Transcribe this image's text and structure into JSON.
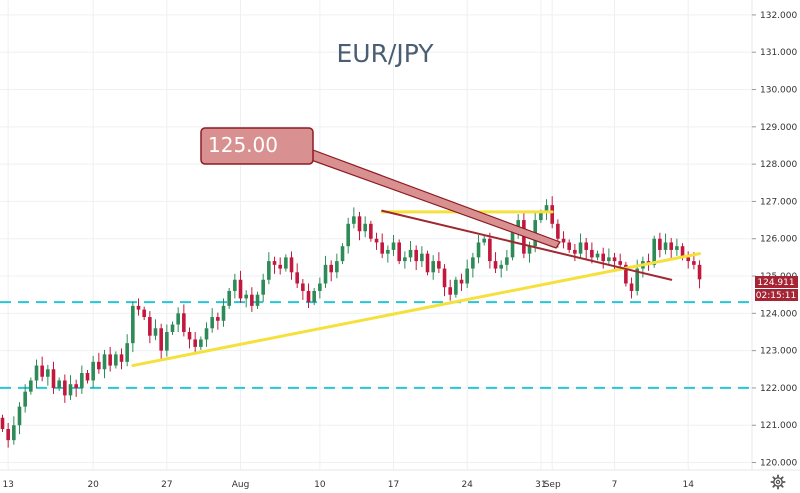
{
  "chart_data": {
    "type": "candlestick",
    "title": "EUR/JPY",
    "ylim": [
      119.8,
      132.4
    ],
    "y_ticks": [
      "132.000",
      "131.000",
      "130.000",
      "129.000",
      "128.000",
      "127.000",
      "126.000",
      "125.000",
      "124.000",
      "123.000",
      "122.000",
      "121.000",
      "120.000"
    ],
    "x_ticks": [
      {
        "label": "13",
        "bar": 1
      },
      {
        "label": "20",
        "bar": 16
      },
      {
        "label": "27",
        "bar": 29
      },
      {
        "label": "Aug",
        "bar": 42
      },
      {
        "label": "10",
        "bar": 56
      },
      {
        "label": "17",
        "bar": 69
      },
      {
        "label": "24",
        "bar": 82
      },
      {
        "label": "31",
        "bar": 95
      },
      {
        "label": "Sep",
        "bar": 97
      },
      {
        "label": "7",
        "bar": 108
      },
      {
        "label": "14",
        "bar": 121
      }
    ],
    "closes": [
      120.9,
      120.6,
      121.0,
      121.5,
      121.9,
      122.2,
      122.6,
      122.3,
      122.5,
      122.0,
      122.2,
      121.8,
      122.1,
      122.0,
      122.4,
      122.2,
      122.7,
      122.5,
      122.9,
      122.6,
      122.9,
      122.7,
      123.2,
      124.2,
      124.1,
      123.9,
      123.4,
      123.6,
      123.0,
      123.5,
      123.7,
      124.0,
      123.5,
      123.3,
      123.1,
      123.3,
      123.6,
      123.9,
      123.8,
      124.2,
      124.6,
      124.9,
      124.4,
      124.5,
      124.2,
      124.5,
      124.9,
      125.4,
      125.3,
      125.2,
      125.5,
      125.1,
      124.8,
      124.6,
      124.3,
      124.6,
      124.8,
      125.3,
      125.1,
      125.4,
      125.8,
      126.4,
      126.6,
      126.2,
      126.4,
      126.0,
      125.9,
      125.6,
      125.7,
      125.9,
      125.4,
      125.5,
      125.7,
      125.4,
      125.6,
      125.1,
      125.4,
      125.2,
      124.7,
      124.5,
      124.9,
      124.8,
      125.2,
      125.5,
      125.9,
      126.0,
      125.4,
      125.2,
      125.3,
      125.5,
      126.2,
      126.5,
      125.6,
      125.8,
      126.5,
      126.7,
      126.9,
      126.4,
      126.0,
      125.9,
      125.7,
      125.6,
      125.9,
      125.7,
      125.5,
      125.6,
      125.4,
      125.5,
      125.4,
      125.3,
      124.8,
      124.6,
      125.2,
      125.4,
      125.3,
      126.0,
      125.7,
      125.9,
      125.7,
      125.8,
      125.5,
      125.4,
      125.3,
      124.911
    ],
    "horizontal_lines": [
      124.3,
      122.0
    ],
    "trendlines": [
      {
        "from": [
          23,
          122.6
        ],
        "to": [
          123,
          125.6
        ]
      },
      {
        "from": [
          67,
          126.72
        ],
        "to": [
          97,
          126.72
        ]
      },
      {
        "from": [
          67,
          126.75
        ],
        "to": [
          118,
          124.9
        ]
      }
    ],
    "callout": {
      "label": "125.00"
    },
    "price_tag": {
      "value": "124.911",
      "countdown": "02:15:11"
    }
  },
  "toolbar": {
    "settings_icon": "gear-icon"
  },
  "colors": {
    "up": "#2e8b57",
    "down": "#c2183e",
    "trendline": "#f5e03c",
    "level": "#26c6da",
    "callout_fill": "#d99090",
    "callout_stroke": "#8e1c24",
    "arrow": "#a02830",
    "title": "#4a5d72"
  }
}
